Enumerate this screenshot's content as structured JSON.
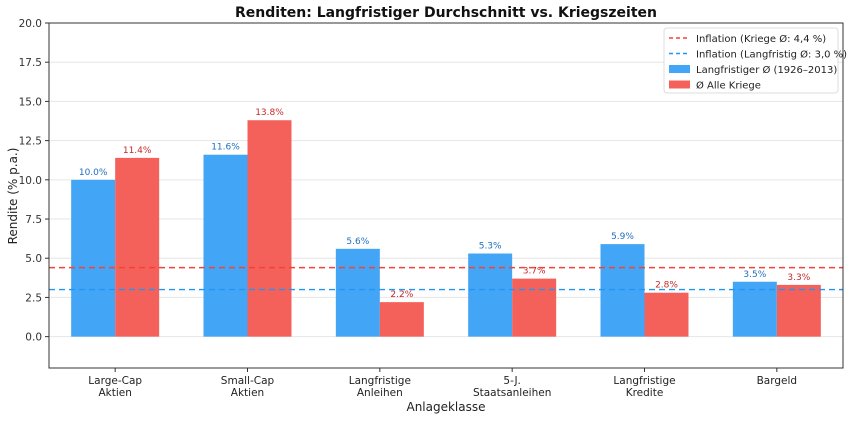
{
  "chart_data": {
    "type": "bar",
    "title": "Renditen: Langfristiger Durchschnitt vs. Kriegszeiten",
    "xlabel": "Anlageklasse",
    "ylabel": "Rendite (% p.a.)",
    "ylim": [
      -2.0,
      20.0
    ],
    "yticks": [
      "0.0",
      "2.5",
      "5.0",
      "7.5",
      "10.0",
      "12.5",
      "15.0",
      "17.5",
      "20.0"
    ],
    "grid": "horizontal",
    "legend_position": "top-right",
    "categories": [
      [
        "Large-Cap",
        "Aktien"
      ],
      [
        "Small-Cap",
        "Aktien"
      ],
      [
        "Langfristige",
        "Anleihen"
      ],
      [
        "5-J.",
        "Staatsanleihen"
      ],
      [
        "Langfristige",
        "Kredite"
      ],
      [
        "Bargeld"
      ]
    ],
    "series": [
      {
        "name": "Langfristiger Ø (1926–2013)",
        "color": "#42a5f5",
        "label_color": "#1e6fc0",
        "values": [
          10.0,
          11.6,
          5.6,
          5.3,
          5.9,
          3.5
        ],
        "labels": [
          "10.0%",
          "11.6%",
          "5.6%",
          "5.3%",
          "5.9%",
          "3.5%"
        ]
      },
      {
        "name": "Ø Alle Kriege",
        "color": "#f4605a",
        "label_color": "#c62828",
        "values": [
          11.4,
          13.8,
          2.2,
          3.7,
          2.8,
          3.3
        ],
        "labels": [
          "11.4%",
          "13.8%",
          "2.2%",
          "3.7%",
          "2.8%",
          "3.3%"
        ]
      }
    ],
    "hlines": [
      {
        "name": "Inflation (Kriege Ø: 4,4 %)",
        "value": 4.4,
        "color": "#f44336"
      },
      {
        "name": "Inflation (Langfristig Ø: 3,0 %)",
        "value": 3.0,
        "color": "#2196f3"
      }
    ]
  }
}
